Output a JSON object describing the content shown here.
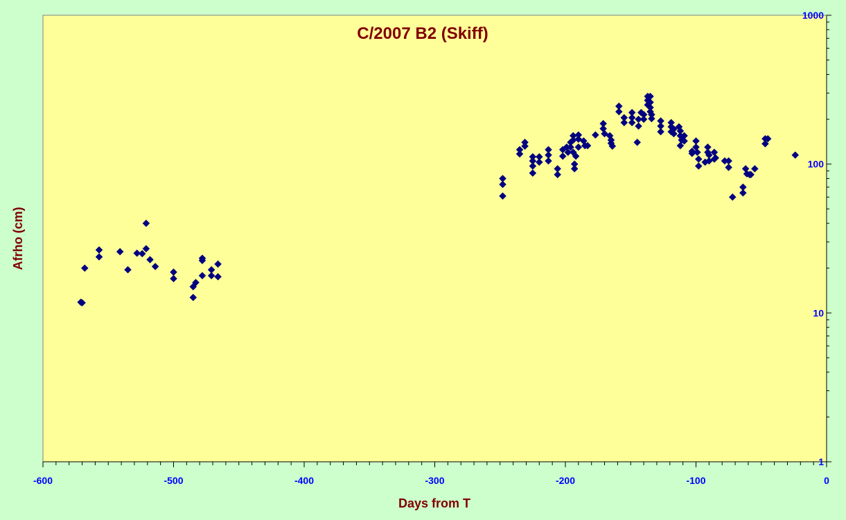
{
  "chart_data": {
    "type": "scatter",
    "title": "C/2007 B2 (Skiff)",
    "xlabel": "Days from T",
    "ylabel": "Afrho (cm)",
    "xlim": [
      -600,
      0
    ],
    "ylim": [
      1,
      1000
    ],
    "yscale": "log",
    "x_ticks": [
      -600,
      -500,
      -400,
      -300,
      -200,
      -100,
      0
    ],
    "y_ticks": [
      1,
      10,
      100,
      1000
    ],
    "grid": false,
    "legend": "none",
    "colors": {
      "background": "#ccffcc",
      "plot_area": "#ffff99",
      "marker": "#000080",
      "tick_labels": "#0000ff",
      "titles": "#800000"
    },
    "series": [
      {
        "points": [
          [
            -571,
            11.8
          ],
          [
            -570,
            11.7
          ],
          [
            -568,
            20.0
          ],
          [
            -557,
            26.5
          ],
          [
            -557,
            23.8
          ],
          [
            -541,
            25.8
          ],
          [
            -535,
            19.5
          ],
          [
            -528,
            25.2
          ],
          [
            -524,
            25.0
          ],
          [
            -521,
            27.0
          ],
          [
            -521,
            40.0
          ],
          [
            -518,
            22.8
          ],
          [
            -514,
            20.5
          ],
          [
            -500,
            18.8
          ],
          [
            -500,
            17.0
          ],
          [
            -485,
            15.0
          ],
          [
            -485,
            12.7
          ],
          [
            -483,
            16.0
          ],
          [
            -478,
            23.3
          ],
          [
            -478,
            22.5
          ],
          [
            -478,
            17.8
          ],
          [
            -471,
            19.5
          ],
          [
            -471,
            17.8
          ],
          [
            -466,
            21.3
          ],
          [
            -466,
            17.5
          ],
          [
            -248,
            80.0
          ],
          [
            -248,
            73.0
          ],
          [
            -248,
            61.0
          ],
          [
            -235,
            125.0
          ],
          [
            -235,
            117.0
          ],
          [
            -231,
            140.0
          ],
          [
            -231,
            132.0
          ],
          [
            -225,
            112.0
          ],
          [
            -225,
            105.0
          ],
          [
            -225,
            97.0
          ],
          [
            -225,
            87.0
          ],
          [
            -220,
            112.0
          ],
          [
            -220,
            103.0
          ],
          [
            -213,
            125.0
          ],
          [
            -213,
            115.0
          ],
          [
            -213,
            105.0
          ],
          [
            -206,
            93.0
          ],
          [
            -206,
            85.0
          ],
          [
            -202,
            125.0
          ],
          [
            -202,
            113.0
          ],
          [
            -199,
            130.0
          ],
          [
            -198,
            120.0
          ],
          [
            -196,
            140.0
          ],
          [
            -196,
            130.0
          ],
          [
            -194,
            155.0
          ],
          [
            -194,
            145.0
          ],
          [
            -194,
            120.0
          ],
          [
            -193,
            100.0
          ],
          [
            -193,
            93.0
          ],
          [
            -192,
            113.0
          ],
          [
            -190,
            157.0
          ],
          [
            -190,
            147.0
          ],
          [
            -190,
            130.0
          ],
          [
            -186,
            143.0
          ],
          [
            -185,
            133.0
          ],
          [
            -183,
            133.0
          ],
          [
            -177,
            157.0
          ],
          [
            -171,
            187.0
          ],
          [
            -171,
            173.0
          ],
          [
            -170,
            160.0
          ],
          [
            -166,
            155.0
          ],
          [
            -165,
            145.0
          ],
          [
            -165,
            138.0
          ],
          [
            -164,
            132.0
          ],
          [
            -159,
            245.0
          ],
          [
            -159,
            225.0
          ],
          [
            -155,
            205.0
          ],
          [
            -155,
            190.0
          ],
          [
            -149,
            222.0
          ],
          [
            -149,
            205.0
          ],
          [
            -149,
            190.0
          ],
          [
            -145,
            140.0
          ],
          [
            -144,
            200.0
          ],
          [
            -144,
            180.0
          ],
          [
            -142,
            222.0
          ],
          [
            -140,
            215.0
          ],
          [
            -140,
            200.0
          ],
          [
            -137,
            285.0
          ],
          [
            -137,
            268.0
          ],
          [
            -137,
            250.0
          ],
          [
            -135,
            285.0
          ],
          [
            -135,
            260.0
          ],
          [
            -135,
            240.0
          ],
          [
            -135,
            225.0
          ],
          [
            -134,
            215.0
          ],
          [
            -134,
            202.0
          ],
          [
            -127,
            195.0
          ],
          [
            -127,
            180.0
          ],
          [
            -127,
            165.0
          ],
          [
            -119,
            190.0
          ],
          [
            -119,
            178.0
          ],
          [
            -119,
            165.0
          ],
          [
            -117,
            172.0
          ],
          [
            -117,
            160.0
          ],
          [
            -113,
            178.0
          ],
          [
            -112,
            167.0
          ],
          [
            -112,
            155.0
          ],
          [
            -112,
            133.0
          ],
          [
            -111,
            145.0
          ],
          [
            -109,
            155.0
          ],
          [
            -109,
            143.0
          ],
          [
            -103,
            122.0
          ],
          [
            -103,
            118.0
          ],
          [
            -100,
            143.0
          ],
          [
            -100,
            130.0
          ],
          [
            -99,
            120.0
          ],
          [
            -98,
            108.0
          ],
          [
            -98,
            97.0
          ],
          [
            -93,
            103.0
          ],
          [
            -91,
            130.0
          ],
          [
            -91,
            120.0
          ],
          [
            -90,
            115.0
          ],
          [
            -90,
            105.0
          ],
          [
            -86,
            120.0
          ],
          [
            -86,
            108.0
          ],
          [
            -85,
            110.0
          ],
          [
            -78,
            105.0
          ],
          [
            -75,
            105.0
          ],
          [
            -75,
            95.0
          ],
          [
            -72,
            60.0
          ],
          [
            -64,
            70.0
          ],
          [
            -64,
            64.0
          ],
          [
            -62,
            93.0
          ],
          [
            -61,
            86.0
          ],
          [
            -59,
            85.0
          ],
          [
            -58,
            85.0
          ],
          [
            -55,
            93.0
          ],
          [
            -47,
            148.0
          ],
          [
            -47,
            137.0
          ],
          [
            -45,
            148.0
          ],
          [
            -24,
            115.0
          ]
        ]
      }
    ]
  }
}
